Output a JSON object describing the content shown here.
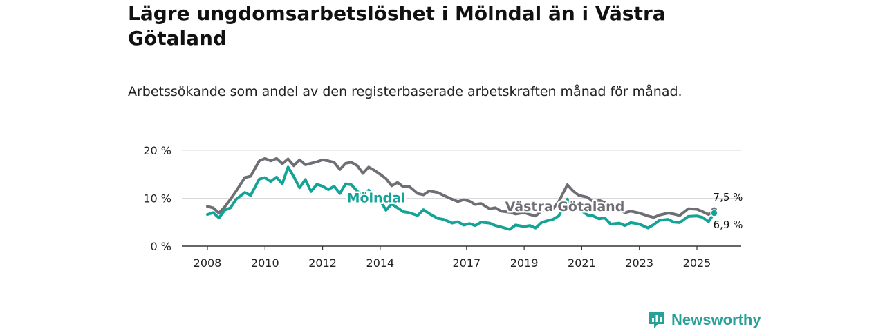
{
  "header": {
    "title": "Lägre ungdomsarbetslöshet i Mölndal än i Västra Götaland",
    "subtitle": "Arbetssökande som andel av den registerbaserade arbetskraften månad för månad."
  },
  "brand": {
    "name": "Newsworthy",
    "icon": "newsworthy-logo-icon",
    "color": "#2aa198"
  },
  "chart_data": {
    "type": "line",
    "title": "Lägre ungdomsarbetslöshet i Mölndal än i Västra Götaland",
    "subtitle": "Arbetssökande som andel av den registerbaserade arbetskraften månad för månad.",
    "ylim": [
      0,
      20
    ],
    "xlim": [
      2007.9,
      2025.75
    ],
    "yticks": [
      0,
      10,
      20
    ],
    "ytick_labels": [
      "0 %",
      "10 %",
      "20 %"
    ],
    "xticks": [
      2008,
      2010,
      2012,
      2014,
      2017,
      2019,
      2021,
      2023,
      2025
    ],
    "xtick_labels": [
      "2008",
      "2010",
      "2012",
      "2014",
      "2017",
      "2019",
      "2021",
      "2023",
      "2025"
    ],
    "grid": true,
    "series": [
      {
        "name": "Västra Götaland",
        "color": "#6e6e75",
        "end_label": "7,5 %",
        "points": [
          [
            2008.0,
            8.3
          ],
          [
            2008.2,
            8.0
          ],
          [
            2008.4,
            6.9
          ],
          [
            2008.6,
            8.2
          ],
          [
            2008.8,
            9.8
          ],
          [
            2009.0,
            11.5
          ],
          [
            2009.3,
            14.3
          ],
          [
            2009.5,
            14.6
          ],
          [
            2009.8,
            17.8
          ],
          [
            2010.0,
            18.3
          ],
          [
            2010.2,
            17.8
          ],
          [
            2010.4,
            18.3
          ],
          [
            2010.6,
            17.2
          ],
          [
            2010.8,
            18.2
          ],
          [
            2011.0,
            16.8
          ],
          [
            2011.2,
            18.0
          ],
          [
            2011.4,
            17.0
          ],
          [
            2011.6,
            17.3
          ],
          [
            2011.8,
            17.6
          ],
          [
            2012.0,
            18.0
          ],
          [
            2012.2,
            17.8
          ],
          [
            2012.4,
            17.5
          ],
          [
            2012.6,
            16.0
          ],
          [
            2012.8,
            17.3
          ],
          [
            2013.0,
            17.5
          ],
          [
            2013.2,
            16.8
          ],
          [
            2013.4,
            15.2
          ],
          [
            2013.6,
            16.5
          ],
          [
            2013.8,
            15.8
          ],
          [
            2014.0,
            15.0
          ],
          [
            2014.2,
            14.1
          ],
          [
            2014.4,
            12.6
          ],
          [
            2014.6,
            13.3
          ],
          [
            2014.8,
            12.4
          ],
          [
            2015.0,
            12.5
          ],
          [
            2015.3,
            11.0
          ],
          [
            2015.5,
            10.7
          ],
          [
            2015.7,
            11.5
          ],
          [
            2016.0,
            11.2
          ],
          [
            2016.2,
            10.6
          ],
          [
            2016.5,
            9.8
          ],
          [
            2016.7,
            9.3
          ],
          [
            2016.9,
            9.7
          ],
          [
            2017.1,
            9.4
          ],
          [
            2017.3,
            8.7
          ],
          [
            2017.5,
            8.9
          ],
          [
            2017.8,
            7.8
          ],
          [
            2018.0,
            8.0
          ],
          [
            2018.2,
            7.3
          ],
          [
            2018.5,
            7.1
          ],
          [
            2018.7,
            6.7
          ],
          [
            2019.0,
            7.0
          ],
          [
            2019.2,
            6.6
          ],
          [
            2019.4,
            6.3
          ],
          [
            2019.6,
            7.4
          ],
          [
            2019.8,
            7.3
          ],
          [
            2020.0,
            7.8
          ],
          [
            2020.2,
            9.3
          ],
          [
            2020.5,
            12.8
          ],
          [
            2020.7,
            11.5
          ],
          [
            2020.9,
            10.6
          ],
          [
            2021.2,
            10.2
          ],
          [
            2021.4,
            9.3
          ],
          [
            2021.6,
            9.6
          ],
          [
            2021.8,
            9.1
          ],
          [
            2022.0,
            7.8
          ],
          [
            2022.3,
            7.6
          ],
          [
            2022.5,
            7.0
          ],
          [
            2022.7,
            7.3
          ],
          [
            2023.0,
            6.9
          ],
          [
            2023.3,
            6.3
          ],
          [
            2023.5,
            6.0
          ],
          [
            2023.7,
            6.5
          ],
          [
            2024.0,
            6.9
          ],
          [
            2024.2,
            6.7
          ],
          [
            2024.4,
            6.4
          ],
          [
            2024.7,
            7.8
          ],
          [
            2025.0,
            7.7
          ],
          [
            2025.2,
            7.2
          ],
          [
            2025.4,
            6.6
          ],
          [
            2025.6,
            7.5
          ]
        ]
      },
      {
        "name": "Mölndal",
        "color": "#14a497",
        "end_label": "6,9 %",
        "points": [
          [
            2008.0,
            6.6
          ],
          [
            2008.2,
            7.0
          ],
          [
            2008.4,
            5.9
          ],
          [
            2008.6,
            7.5
          ],
          [
            2008.8,
            8.0
          ],
          [
            2009.0,
            9.8
          ],
          [
            2009.3,
            11.2
          ],
          [
            2009.5,
            10.6
          ],
          [
            2009.8,
            14.0
          ],
          [
            2010.0,
            14.3
          ],
          [
            2010.2,
            13.5
          ],
          [
            2010.4,
            14.4
          ],
          [
            2010.6,
            13.0
          ],
          [
            2010.8,
            16.5
          ],
          [
            2011.0,
            14.5
          ],
          [
            2011.2,
            12.2
          ],
          [
            2011.4,
            13.9
          ],
          [
            2011.6,
            11.4
          ],
          [
            2011.8,
            12.9
          ],
          [
            2012.0,
            12.5
          ],
          [
            2012.2,
            11.8
          ],
          [
            2012.4,
            12.5
          ],
          [
            2012.6,
            11.0
          ],
          [
            2012.8,
            13.0
          ],
          [
            2013.0,
            12.8
          ],
          [
            2013.2,
            11.5
          ],
          [
            2013.4,
            10.4
          ],
          [
            2013.6,
            11.7
          ],
          [
            2013.8,
            10.0
          ],
          [
            2014.0,
            9.6
          ],
          [
            2014.2,
            7.5
          ],
          [
            2014.4,
            8.8
          ],
          [
            2014.6,
            8.0
          ],
          [
            2014.8,
            7.2
          ],
          [
            2015.0,
            7.0
          ],
          [
            2015.3,
            6.4
          ],
          [
            2015.5,
            7.6
          ],
          [
            2015.7,
            6.8
          ],
          [
            2016.0,
            5.8
          ],
          [
            2016.2,
            5.6
          ],
          [
            2016.5,
            4.8
          ],
          [
            2016.7,
            5.1
          ],
          [
            2016.9,
            4.4
          ],
          [
            2017.1,
            4.7
          ],
          [
            2017.3,
            4.3
          ],
          [
            2017.5,
            5.0
          ],
          [
            2017.8,
            4.8
          ],
          [
            2018.0,
            4.3
          ],
          [
            2018.2,
            4.0
          ],
          [
            2018.5,
            3.5
          ],
          [
            2018.7,
            4.4
          ],
          [
            2019.0,
            4.1
          ],
          [
            2019.2,
            4.3
          ],
          [
            2019.4,
            3.8
          ],
          [
            2019.6,
            4.9
          ],
          [
            2019.8,
            5.3
          ],
          [
            2020.0,
            5.6
          ],
          [
            2020.2,
            6.3
          ],
          [
            2020.5,
            9.8
          ],
          [
            2020.7,
            8.3
          ],
          [
            2020.9,
            7.8
          ],
          [
            2021.2,
            6.5
          ],
          [
            2021.4,
            6.3
          ],
          [
            2021.6,
            5.7
          ],
          [
            2021.8,
            5.9
          ],
          [
            2022.0,
            4.6
          ],
          [
            2022.3,
            4.8
          ],
          [
            2022.5,
            4.3
          ],
          [
            2022.7,
            4.9
          ],
          [
            2023.0,
            4.6
          ],
          [
            2023.3,
            3.8
          ],
          [
            2023.5,
            4.5
          ],
          [
            2023.7,
            5.4
          ],
          [
            2024.0,
            5.6
          ],
          [
            2024.2,
            5.0
          ],
          [
            2024.4,
            4.9
          ],
          [
            2024.7,
            6.2
          ],
          [
            2025.0,
            6.3
          ],
          [
            2025.2,
            6.0
          ],
          [
            2025.4,
            5.1
          ],
          [
            2025.6,
            6.9
          ]
        ]
      }
    ],
    "annotations": [
      {
        "text": "Mölndal",
        "series": "Mölndal",
        "x": 2013.8,
        "y": 10.0
      },
      {
        "text": "Västra Götaland",
        "series": "Västra Götaland",
        "x": 2019.3,
        "y": 8.2
      }
    ]
  }
}
